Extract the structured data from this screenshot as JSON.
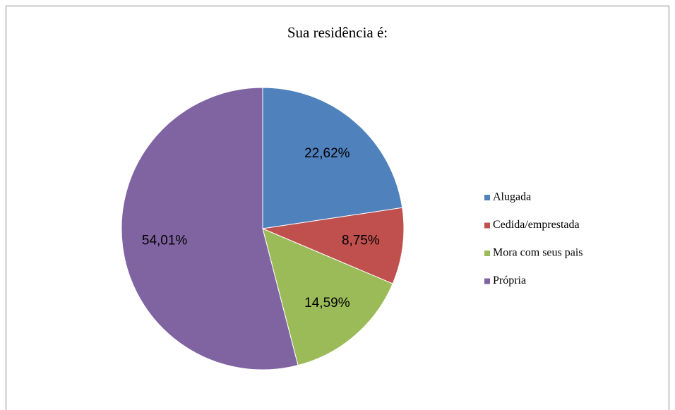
{
  "chart_data": {
    "type": "pie",
    "title": "Sua residência é:",
    "categories": [
      "Alugada",
      "Cedida/emprestada",
      "Mora com seus pais",
      "Própria"
    ],
    "values": [
      22.62,
      8.75,
      14.59,
      54.01
    ],
    "value_labels": [
      "22,62%",
      "8,75%",
      "14,59%",
      "54,01%"
    ],
    "colors": [
      "#4f81bd",
      "#c0504d",
      "#9bbb59",
      "#8064a2"
    ],
    "legend": "right"
  }
}
